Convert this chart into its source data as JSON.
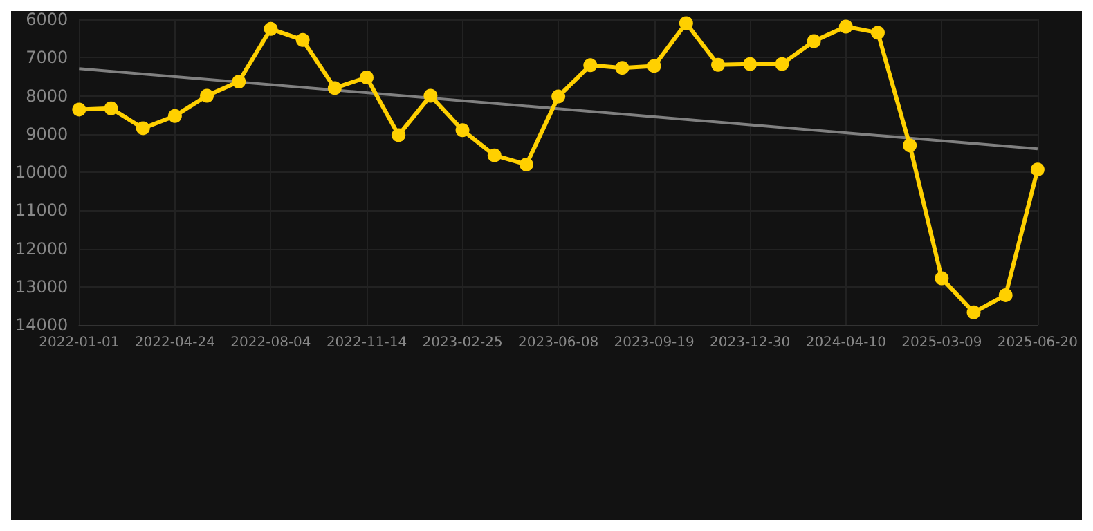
{
  "chart_data": {
    "type": "line",
    "categories": [
      "2022-01-01",
      null,
      null,
      "2022-04-24",
      null,
      null,
      "2022-08-04",
      null,
      null,
      "2022-11-14",
      null,
      null,
      "2023-02-25",
      null,
      null,
      "2023-06-08",
      null,
      null,
      "2023-09-19",
      null,
      null,
      "2023-12-30",
      null,
      null,
      "2024-04-10",
      null,
      null,
      "2025-03-09",
      null,
      null,
      "2025-06-20"
    ],
    "series": [
      {
        "color": "#ffd000",
        "marker": "circle",
        "values": [
          8360,
          8330,
          8850,
          8530,
          8000,
          7630,
          6250,
          6540,
          7800,
          7520,
          9030,
          8000,
          8900,
          9560,
          9800,
          8020,
          7200,
          7270,
          7220,
          6100,
          7190,
          7170,
          7170,
          6570,
          6190,
          6350,
          9300,
          12780,
          13670,
          13220,
          9930
        ]
      },
      {
        "color": "#808080",
        "marker": "none",
        "values": [
          7290,
          null,
          null,
          null,
          null,
          null,
          null,
          null,
          null,
          null,
          null,
          null,
          null,
          null,
          null,
          null,
          null,
          null,
          null,
          null,
          null,
          null,
          null,
          null,
          null,
          null,
          null,
          null,
          null,
          null,
          9390
        ]
      }
    ],
    "ylim": [
      14000,
      6000
    ],
    "yticks": [
      6000,
      7000,
      8000,
      9000,
      10000,
      11000,
      12000,
      13000,
      14000
    ],
    "grid": true,
    "line_style": "solid"
  }
}
